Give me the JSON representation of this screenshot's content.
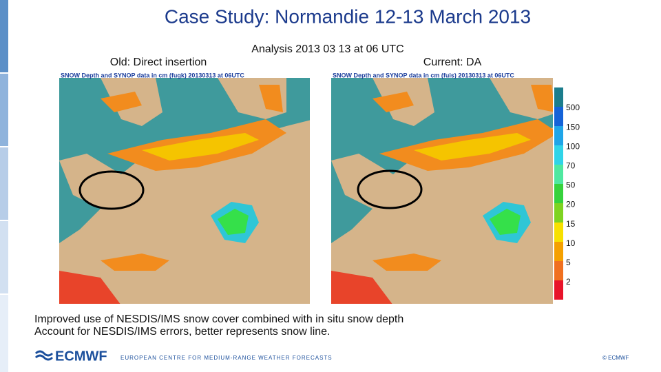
{
  "header": {
    "title": "Case Study: Normandie 12-13 March 2013",
    "subtitle": "Analysis 2013 03 13 at 06 UTC"
  },
  "panels": [
    {
      "label": "Old: Direct insertion",
      "map_title": "SNOW Depth and SYNOP data in cm (fugk) 20130313 at 06UTC"
    },
    {
      "label": "Current: DA",
      "map_title": "SNOW Depth and SYNOP data in cm (fuis) 20130313 at 06UTC"
    }
  ],
  "colorbar": {
    "labels": [
      "500",
      "150",
      "100",
      "70",
      "50",
      "20",
      "15",
      "10",
      "5",
      "2"
    ]
  },
  "body": {
    "lines": [
      "Improved use of NESDIS/IMS snow cover combined with in situ snow depth",
      "Account for NESDIS/IMS errors, better represents snow line."
    ]
  },
  "footer": {
    "logo": "ECMWF",
    "organization": "EUROPEAN CENTRE FOR MEDIUM-RANGE WEATHER FORECASTS",
    "copyright": "© ECMWF"
  }
}
